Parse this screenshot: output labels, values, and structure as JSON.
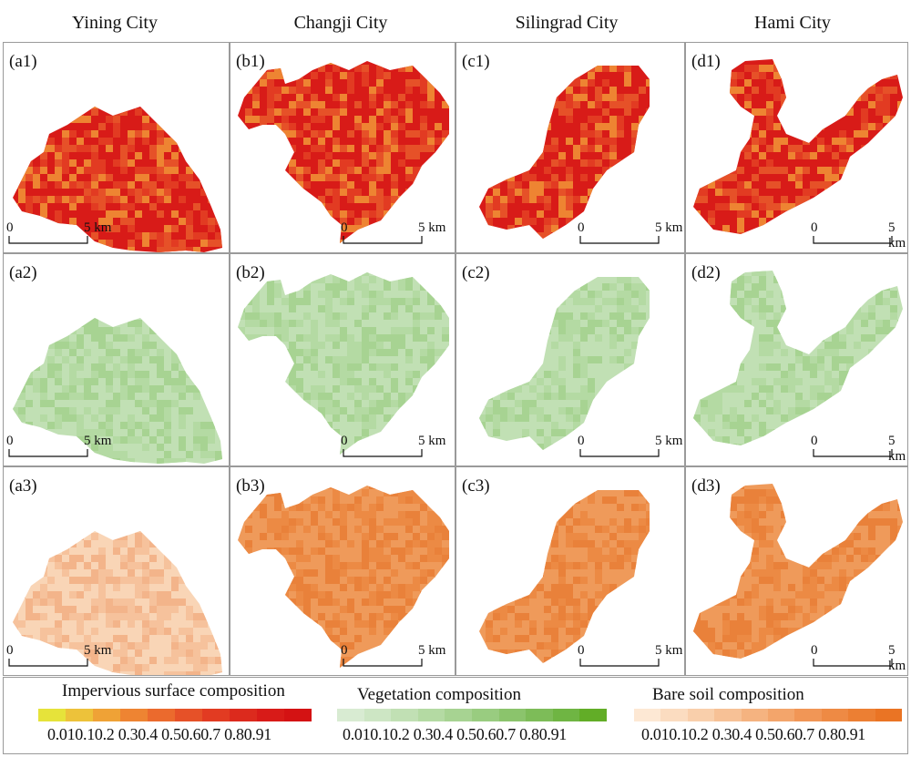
{
  "columns": [
    {
      "title": "Yining City"
    },
    {
      "title": "Changji City"
    },
    {
      "title": "Silingrad City"
    },
    {
      "title": "Hami City"
    }
  ],
  "panel_labels": [
    [
      "(a1)",
      "(b1)",
      "(c1)",
      "(d1)"
    ],
    [
      "(a2)",
      "(b2)",
      "(c2)",
      "(d2)"
    ],
    [
      "(a3)",
      "(b3)",
      "(c3)",
      "(d3)"
    ]
  ],
  "scalebar": {
    "zero": "0",
    "distance": "5 km"
  },
  "legends": [
    {
      "title": "Impervious surface composition",
      "ticks": "0.010.10.2 0.30.4 0.50.60.7 0.80.91",
      "colors": [
        "#e6e33a",
        "#edc23a",
        "#efa236",
        "#ee8432",
        "#eb6a2d",
        "#e65128",
        "#e23b22",
        "#dc2a1d",
        "#d81b18",
        "#d41213"
      ]
    },
    {
      "title": "Vegetation composition",
      "ticks": "0.010.10.2 0.30.4 0.50.60.7 0.80.91",
      "colors": [
        "#d8ebd2",
        "#cde6c4",
        "#c1e0b4",
        "#b4daa3",
        "#a7d392",
        "#99cc80",
        "#8bc46c",
        "#7dbc58",
        "#6fb543",
        "#62ad27"
      ]
    },
    {
      "title": "Bare soil composition",
      "ticks": "0.010.10.2 0.30.4 0.50.60.7 0.80.91",
      "colors": [
        "#fde8d4",
        "#fbdcc0",
        "#f9cfab",
        "#f7c196",
        "#f5b380",
        "#f3a56b",
        "#f19656",
        "#ee8a44",
        "#ec7f33",
        "#ea7424"
      ]
    }
  ],
  "layer_colors": {
    "impervious": [
      "#d81b18",
      "#e23b22",
      "#e65128",
      "#ee8432"
    ],
    "vegetation": [
      "#c1e0b4",
      "#b4daa3",
      "#a7d392"
    ],
    "baresoil_light": [
      "#f9d5b6",
      "#f6c29c",
      "#f3b48a"
    ],
    "baresoil_dark": [
      "#ef9a5a",
      "#ec8a44",
      "#e9813a"
    ]
  }
}
